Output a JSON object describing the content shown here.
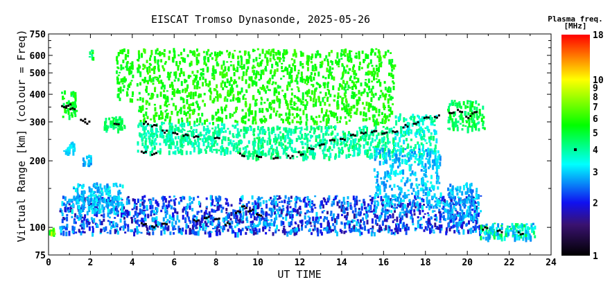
{
  "chart_data": {
    "type": "scatter",
    "title": "EISCAT Tromso Dynasonde, 2025-05-26",
    "xlabel": "UT TIME",
    "ylabel": "Virtual Range [km] (colour = Freq)",
    "xlim": [
      0,
      24
    ],
    "ylim": [
      75,
      750
    ],
    "yscale": "log",
    "xticks": [
      "0",
      "2",
      "4",
      "6",
      "8",
      "10",
      "12",
      "14",
      "16",
      "18",
      "20",
      "22",
      "24"
    ],
    "yticks": [
      "75",
      "100",
      "200",
      "300",
      "400",
      "500",
      "600",
      "750"
    ],
    "colorbar": {
      "label": "Plasma freq.",
      "unit": "[MHz]",
      "range": [
        1,
        18
      ],
      "scale": "log",
      "ticks": [
        "1",
        "2",
        "3",
        "4",
        "5",
        "6",
        "7",
        "8",
        "9",
        "10",
        "18"
      ],
      "marker_value": 4
    },
    "colormap": [
      "#000000",
      "#3a1270",
      "#1010f0",
      "#00ffff",
      "#00ff00",
      "#ffff00",
      "#ff0000"
    ],
    "echo_regions": [
      {
        "t": [
          0.6,
          1.3
        ],
        "h": [
          320,
          420
        ],
        "f": [
          4.5,
          6
        ]
      },
      {
        "t": [
          1.9,
          2.1
        ],
        "h": [
          590,
          640
        ],
        "f": [
          4,
          6
        ]
      },
      {
        "t": [
          0.7,
          1.2
        ],
        "h": [
          220,
          245
        ],
        "f": [
          2.8,
          3.3
        ]
      },
      {
        "t": [
          1.6,
          2.0
        ],
        "h": [
          195,
          215
        ],
        "f": [
          2.5,
          3.2
        ]
      },
      {
        "t": [
          2.6,
          3.6
        ],
        "h": [
          280,
          320
        ],
        "f": [
          4,
          5
        ]
      },
      {
        "t": [
          3.2,
          4.0
        ],
        "h": [
          380,
          650
        ],
        "f": [
          5,
          6
        ]
      },
      {
        "t": [
          4.2,
          16.5
        ],
        "h": [
          300,
          650
        ],
        "f": [
          5,
          6.5
        ]
      },
      {
        "t": [
          4.2,
          9.0
        ],
        "h": [
          220,
          300
        ],
        "f": [
          3.5,
          4.5
        ]
      },
      {
        "t": [
          9.0,
          16.5
        ],
        "h": [
          210,
          290
        ],
        "f": [
          3.5,
          4.8
        ]
      },
      {
        "t": [
          16.5,
          18.5
        ],
        "h": [
          200,
          330
        ],
        "f": [
          3,
          4.5
        ]
      },
      {
        "t": [
          19.0,
          20.8
        ],
        "h": [
          280,
          380
        ],
        "f": [
          4,
          5.5
        ]
      },
      {
        "t": [
          0.5,
          20.6
        ],
        "h": [
          95,
          140
        ],
        "f": [
          1.6,
          3.2
        ]
      },
      {
        "t": [
          1.0,
          3.5
        ],
        "h": [
          120,
          160
        ],
        "f": [
          2.5,
          3.5
        ]
      },
      {
        "t": [
          15.5,
          18.7
        ],
        "h": [
          120,
          230
        ],
        "f": [
          2.5,
          3.5
        ]
      },
      {
        "t": [
          19.0,
          20.5
        ],
        "h": [
          110,
          160
        ],
        "f": [
          2.3,
          3.3
        ]
      },
      {
        "t": [
          20.6,
          23.2
        ],
        "h": [
          90,
          105
        ],
        "f": [
          2.5,
          5
        ]
      },
      {
        "t": [
          0.0,
          0.3
        ],
        "h": [
          90,
          100
        ],
        "f": [
          5,
          9
        ]
      }
    ],
    "trace_points": [
      [
        0.7,
        355
      ],
      [
        0.9,
        360
      ],
      [
        1.1,
        350
      ],
      [
        1.6,
        310
      ],
      [
        1.8,
        300
      ],
      [
        3.2,
        300
      ],
      [
        4.6,
        300
      ],
      [
        5.0,
        290
      ],
      [
        5.5,
        275
      ],
      [
        6.0,
        270
      ],
      [
        6.5,
        265
      ],
      [
        7.0,
        260
      ],
      [
        4.5,
        220
      ],
      [
        5.0,
        218
      ],
      [
        8.0,
        255
      ],
      [
        9.2,
        215
      ],
      [
        10.0,
        212
      ],
      [
        10.8,
        208
      ],
      [
        11.5,
        210
      ],
      [
        12.0,
        218
      ],
      [
        12.5,
        228
      ],
      [
        13.0,
        240
      ],
      [
        13.5,
        250
      ],
      [
        14.0,
        255
      ],
      [
        14.5,
        262
      ],
      [
        15.0,
        270
      ],
      [
        15.5,
        272
      ],
      [
        16.0,
        268
      ],
      [
        16.5,
        272
      ],
      [
        17.0,
        290
      ],
      [
        17.5,
        300
      ],
      [
        18.0,
        315
      ],
      [
        18.5,
        320
      ],
      [
        19.2,
        330
      ],
      [
        19.6,
        340
      ],
      [
        20.0,
        320
      ],
      [
        20.3,
        335
      ],
      [
        4.5,
        105
      ],
      [
        5.0,
        102
      ],
      [
        5.5,
        104
      ],
      [
        7.0,
        108
      ],
      [
        7.5,
        112
      ],
      [
        8.0,
        110
      ],
      [
        8.5,
        105
      ],
      [
        9.0,
        118
      ],
      [
        9.3,
        125
      ],
      [
        9.6,
        120
      ],
      [
        10.0,
        115
      ],
      [
        20.8,
        100
      ],
      [
        21.5,
        97
      ],
      [
        22.5,
        95
      ]
    ]
  }
}
